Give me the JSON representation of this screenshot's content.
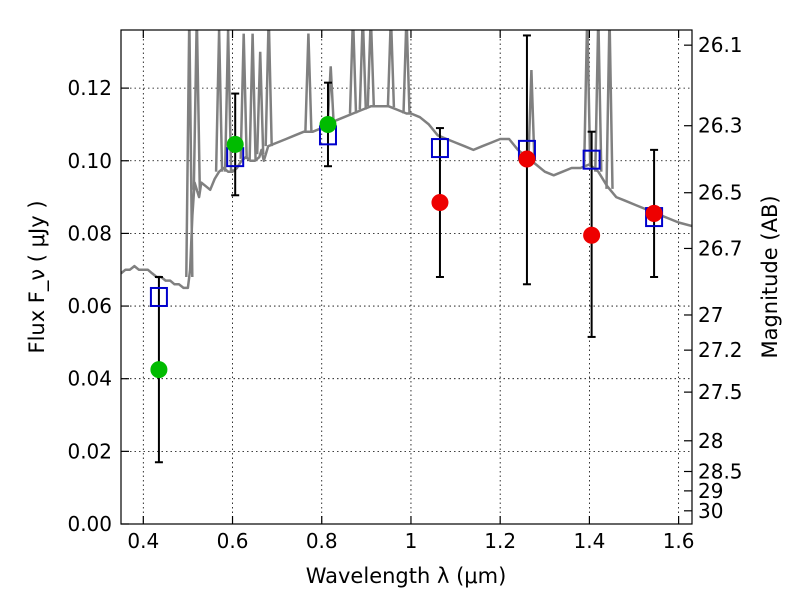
{
  "chart_data": {
    "type": "scatter",
    "title": "",
    "xlabel": "Wavelength  λ (μm)",
    "ylabel": "Flux  F_ν  ( μJy )",
    "y2label": "Magnitude (AB)",
    "xlim": [
      0.35,
      1.63
    ],
    "ylim": [
      0.0,
      0.136
    ],
    "grid": true,
    "x_ticks": [
      0.4,
      0.6,
      0.8,
      1.0,
      1.2,
      1.4,
      1.6
    ],
    "x_tick_labels": [
      "0.4",
      "0.6",
      "0.8",
      "1",
      "1.2",
      "1.4",
      "1.6"
    ],
    "y_ticks": [
      0.0,
      0.02,
      0.04,
      0.06,
      0.08,
      0.1,
      0.12
    ],
    "y_tick_labels": [
      "0.00",
      "0.02",
      "0.04",
      "0.06",
      "0.08",
      "0.10",
      "0.12"
    ],
    "magnitude_ticks": [
      "26.1",
      "26.3",
      "26.5",
      "26.7",
      "27",
      "27.2",
      "27.5",
      "28",
      "28.5",
      "29",
      "30"
    ],
    "colors": {
      "model": "#808080",
      "model_photometry": "#0000cc",
      "detections_green": "#00bb00",
      "detections_red": "#ee0000",
      "errorbars": "#000000"
    },
    "series": [
      {
        "kind": "model_spectrum",
        "x": [
          0.35,
          0.36,
          0.37,
          0.38,
          0.39,
          0.4,
          0.41,
          0.42,
          0.43,
          0.44,
          0.45,
          0.46,
          0.47,
          0.48,
          0.49,
          0.5,
          0.505,
          0.51,
          0.515,
          0.52,
          0.525,
          0.53,
          0.54,
          0.55,
          0.56,
          0.57,
          0.58,
          0.59,
          0.6,
          0.61,
          0.62,
          0.63,
          0.64,
          0.65,
          0.66,
          0.665,
          0.67,
          0.675,
          0.68,
          0.7,
          0.72,
          0.74,
          0.76,
          0.78,
          0.8,
          0.81,
          0.815,
          0.82,
          0.83,
          0.85,
          0.87,
          0.89,
          0.91,
          0.93,
          0.95,
          0.97,
          0.99,
          1.0,
          1.02,
          1.04,
          1.06,
          1.08,
          1.1,
          1.12,
          1.14,
          1.16,
          1.18,
          1.2,
          1.22,
          1.24,
          1.26,
          1.28,
          1.3,
          1.32,
          1.34,
          1.36,
          1.38,
          1.4,
          1.42,
          1.44,
          1.46,
          1.48,
          1.5,
          1.52,
          1.54,
          1.56,
          1.58,
          1.6,
          1.63
        ],
        "y": [
          0.069,
          0.07,
          0.07,
          0.071,
          0.07,
          0.07,
          0.07,
          0.069,
          0.068,
          0.068,
          0.067,
          0.067,
          0.066,
          0.066,
          0.065,
          0.065,
          0.07,
          0.085,
          0.094,
          0.092,
          0.09,
          0.094,
          0.093,
          0.092,
          0.095,
          0.097,
          0.098,
          0.097,
          0.097,
          0.098,
          0.1,
          0.101,
          0.1,
          0.1,
          0.101,
          0.103,
          0.1,
          0.102,
          0.104,
          0.105,
          0.106,
          0.107,
          0.108,
          0.108,
          0.109,
          0.109,
          0.11,
          0.11,
          0.111,
          0.112,
          0.113,
          0.114,
          0.115,
          0.115,
          0.115,
          0.114,
          0.113,
          0.113,
          0.112,
          0.11,
          0.107,
          0.106,
          0.105,
          0.104,
          0.103,
          0.104,
          0.105,
          0.106,
          0.106,
          0.103,
          0.101,
          0.099,
          0.097,
          0.096,
          0.097,
          0.098,
          0.098,
          0.099,
          0.097,
          0.093,
          0.09,
          0.089,
          0.088,
          0.087,
          0.086,
          0.085,
          0.084,
          0.083,
          0.082
        ],
        "emission_lines": [
          {
            "x": 0.503,
            "peak": 0.14
          },
          {
            "x": 0.52,
            "peak": 0.14
          },
          {
            "x": 0.57,
            "peak": 0.136
          },
          {
            "x": 0.59,
            "peak": 0.136
          },
          {
            "x": 0.625,
            "peak": 0.135
          },
          {
            "x": 0.645,
            "peak": 0.135
          },
          {
            "x": 0.662,
            "peak": 0.13
          },
          {
            "x": 0.681,
            "peak": 0.14
          },
          {
            "x": 0.77,
            "peak": 0.135
          },
          {
            "x": 0.82,
            "peak": 0.126
          },
          {
            "x": 0.87,
            "peak": 0.14
          },
          {
            "x": 0.892,
            "peak": 0.14
          },
          {
            "x": 0.91,
            "peak": 0.14
          },
          {
            "x": 0.955,
            "peak": 0.14
          },
          {
            "x": 0.99,
            "peak": 0.14
          },
          {
            "x": 1.27,
            "peak": 0.125
          },
          {
            "x": 1.395,
            "peak": 0.14
          },
          {
            "x": 1.42,
            "peak": 0.14
          },
          {
            "x": 1.445,
            "peak": 0.14
          }
        ]
      },
      {
        "kind": "model_photometry",
        "marker": "open_square",
        "x": [
          0.435,
          0.606,
          0.814,
          1.065,
          1.26,
          1.405,
          1.545
        ],
        "y": [
          0.0625,
          0.101,
          0.107,
          0.1035,
          0.103,
          0.1003,
          0.0845
        ]
      },
      {
        "kind": "observed_green",
        "marker": "filled_circle",
        "x": [
          0.435,
          0.606,
          0.814
        ],
        "y": [
          0.0425,
          0.1045,
          0.11
        ],
        "yerr_low": [
          0.017,
          0.0905,
          0.0985
        ],
        "yerr_high": [
          0.068,
          0.1185,
          0.1215
        ]
      },
      {
        "kind": "observed_red",
        "marker": "filled_circle",
        "x": [
          1.065,
          1.26,
          1.405,
          1.545
        ],
        "y": [
          0.0885,
          0.1005,
          0.0795,
          0.0855
        ],
        "yerr_low": [
          0.068,
          0.066,
          0.0515,
          0.068
        ],
        "yerr_high": [
          0.109,
          0.1345,
          0.108,
          0.103
        ]
      }
    ]
  }
}
